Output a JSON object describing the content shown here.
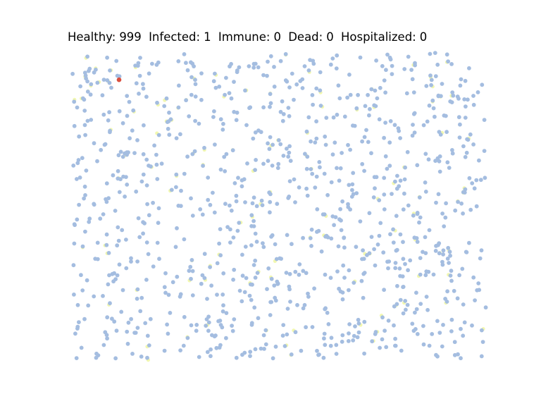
{
  "status": {
    "healthy_label": "Healthy:",
    "healthy": "999",
    "infected_label": "Infected:",
    "infected": "1",
    "immune_label": "Immune:",
    "immune": "0",
    "dead_label": "Dead:",
    "dead": "0",
    "hospitalized_label": "Hospitalized:",
    "hospitalized": "0"
  },
  "chart_data": {
    "type": "scatter",
    "title": "Healthy: 999 Infected: 1 Immune: 0 Dead: 0 Hospitalized: 0",
    "xlim": [
      0,
      1
    ],
    "ylim": [
      0,
      1
    ],
    "grid": false,
    "axes_visible": false,
    "series": [
      {
        "name": "Healthy",
        "count": 999,
        "color": "#a4bde0"
      },
      {
        "name": "Infected",
        "count": 1,
        "color": "#d9503f",
        "points": [
          [
            0.114,
            0.912
          ]
        ]
      }
    ],
    "trail_color": "#f2f8b0"
  }
}
